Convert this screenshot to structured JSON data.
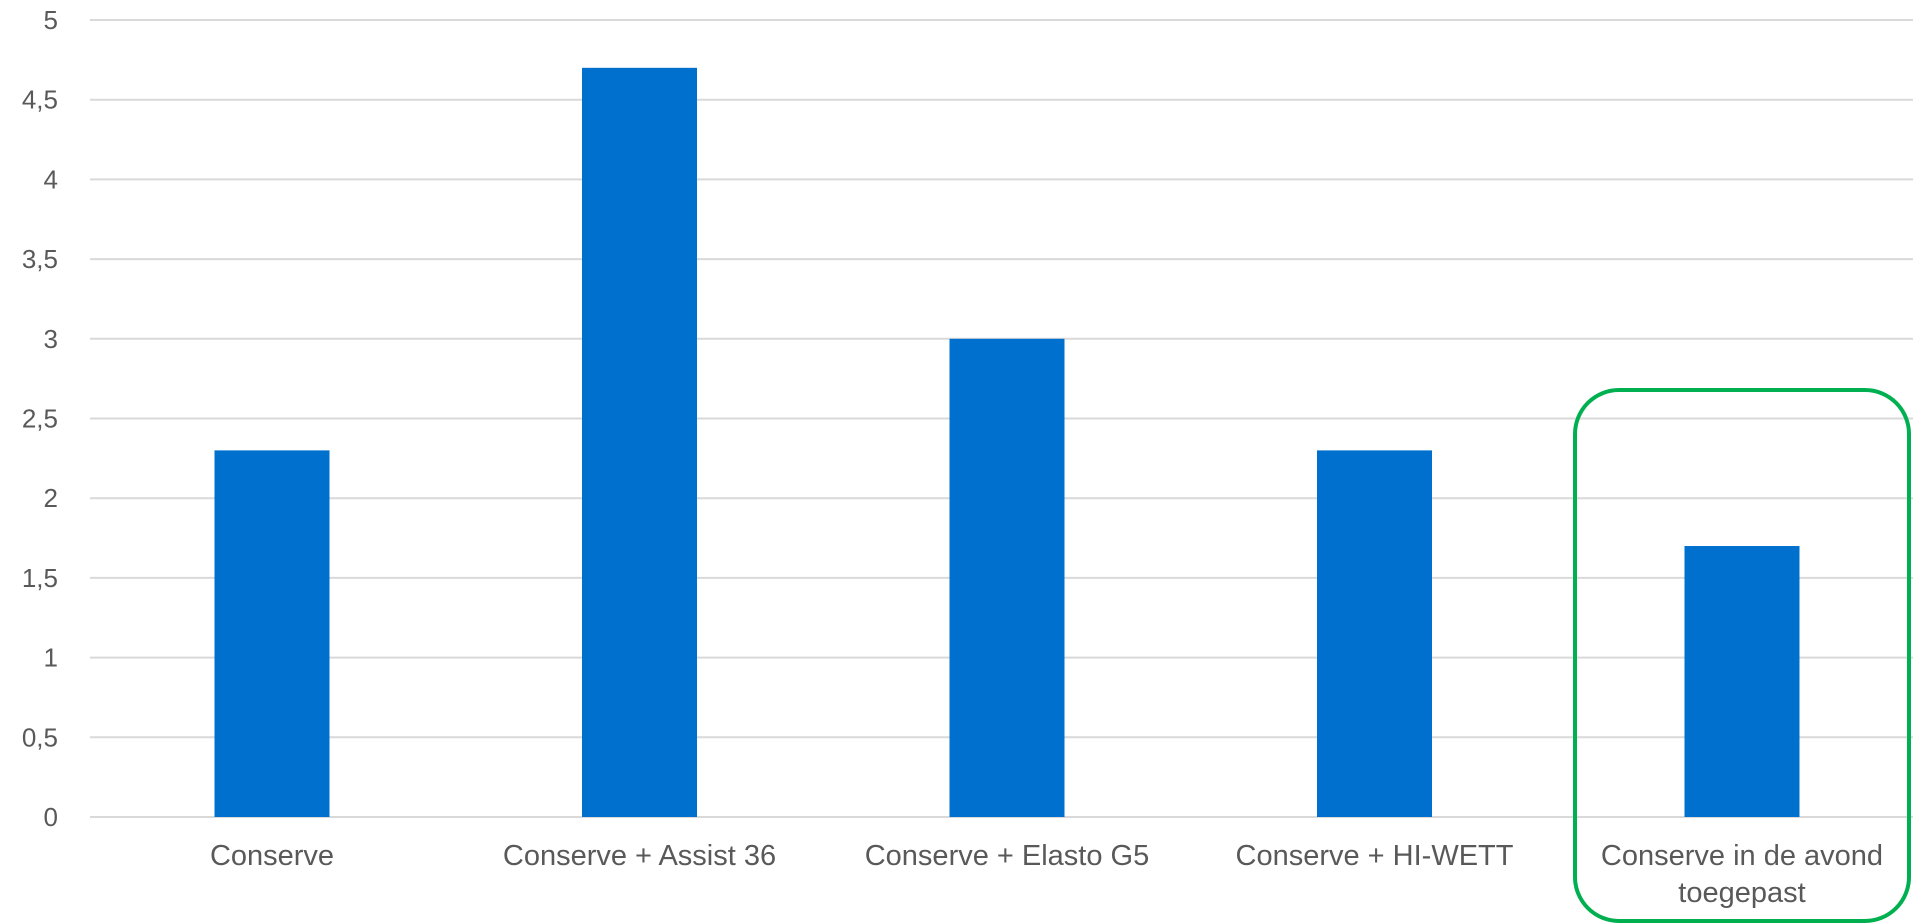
{
  "chart_data": {
    "type": "bar",
    "categories": [
      [
        "Conserve"
      ],
      [
        "Conserve + Assist 36"
      ],
      [
        "Conserve + Elasto G5"
      ],
      [
        "Conserve + HI-WETT"
      ],
      [
        "Conserve in de avond",
        "toegepast"
      ]
    ],
    "values": [
      2.3,
      4.7,
      3.0,
      2.3,
      1.7
    ],
    "ylim": [
      0,
      5
    ],
    "yticks": [
      "0",
      "0,5",
      "1",
      "1,5",
      "2",
      "2,5",
      "3",
      "3,5",
      "4",
      "4,5",
      "5"
    ],
    "grid": true,
    "bar_color": "#0070CE",
    "gridline_color": "#D9D9D9",
    "highlight": {
      "category_index": 4,
      "color": "#00B050"
    }
  }
}
